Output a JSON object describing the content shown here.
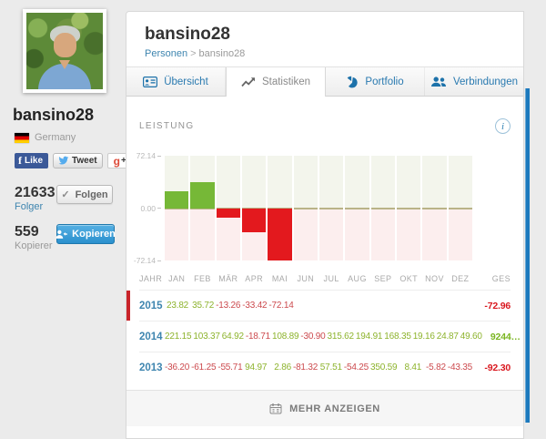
{
  "page": {
    "title": "bansino28",
    "breadcrumb": {
      "root": "Personen",
      "sep": ">",
      "current": "bansino28"
    }
  },
  "sidebar": {
    "username": "bansino28",
    "country": "Germany",
    "social": {
      "like": "Like",
      "tweet": "Tweet",
      "gplus_g": "g",
      "gplus_plus": "+1"
    },
    "followers": {
      "count": "21633",
      "label": "Folger",
      "button": "Folgen"
    },
    "copiers": {
      "count": "559",
      "label": "Kopierer",
      "button": "Kopieren"
    }
  },
  "tabs": [
    {
      "label": "Übersicht",
      "icon": "id-card-icon",
      "active": false
    },
    {
      "label": "Statistiken",
      "icon": "line-chart-icon",
      "active": true
    },
    {
      "label": "Portfolio",
      "icon": "pie-chart-icon",
      "active": false
    },
    {
      "label": "Verbindungen",
      "icon": "people-icon",
      "active": false
    }
  ],
  "stats": {
    "section_title": "LEISTUNG"
  },
  "icons": {
    "info": "i",
    "check": "✓"
  },
  "chart_data": {
    "type": "bar",
    "title": "LEISTUNG",
    "categories": [
      "JAN",
      "FEB",
      "MÄR",
      "APR",
      "MAI",
      "JUN",
      "JUL",
      "AUG",
      "SEP",
      "OKT",
      "NOV",
      "DEZ"
    ],
    "values": [
      23.82,
      35.72,
      -13.26,
      -33.42,
      -72.14,
      null,
      null,
      null,
      null,
      null,
      null,
      null
    ],
    "ylim": [
      -72.14,
      72.14
    ],
    "yticks": [
      "72.14",
      "0.00",
      "-72.14"
    ],
    "positive_color": "#76b837",
    "negative_color": "#e3191e",
    "grid": false,
    "legend": "none"
  },
  "table": {
    "headers": [
      "JAHR",
      "JAN",
      "FEB",
      "MÄR",
      "APR",
      "MAI",
      "JUN",
      "JUL",
      "AUG",
      "SEP",
      "OKT",
      "NOV",
      "DEZ",
      "GES"
    ],
    "rows": [
      {
        "year": "2015",
        "selected": true,
        "values": [
          "23.82",
          "35.72",
          "-13.26",
          "-33.42",
          "-72.14",
          "",
          "",
          "",
          "",
          "",
          "",
          ""
        ],
        "total": "-72.96"
      },
      {
        "year": "2014",
        "selected": false,
        "values": [
          "221.15",
          "103.37",
          "64.92",
          "-18.71",
          "108.89",
          "-30.90",
          "315.62",
          "194.91",
          "168.35",
          "19.16",
          "24.87",
          "49.60"
        ],
        "total": "9244…"
      },
      {
        "year": "2013",
        "selected": false,
        "values": [
          "-36.20",
          "-61.25",
          "-55.71",
          "94.97",
          "2.86",
          "-81.32",
          "57.51",
          "-54.25",
          "350.59",
          "8.41",
          "-5.82",
          "-43.35"
        ],
        "total": "-92.30"
      }
    ]
  },
  "footer": {
    "more_label": "MEHR ANZEIGEN"
  }
}
